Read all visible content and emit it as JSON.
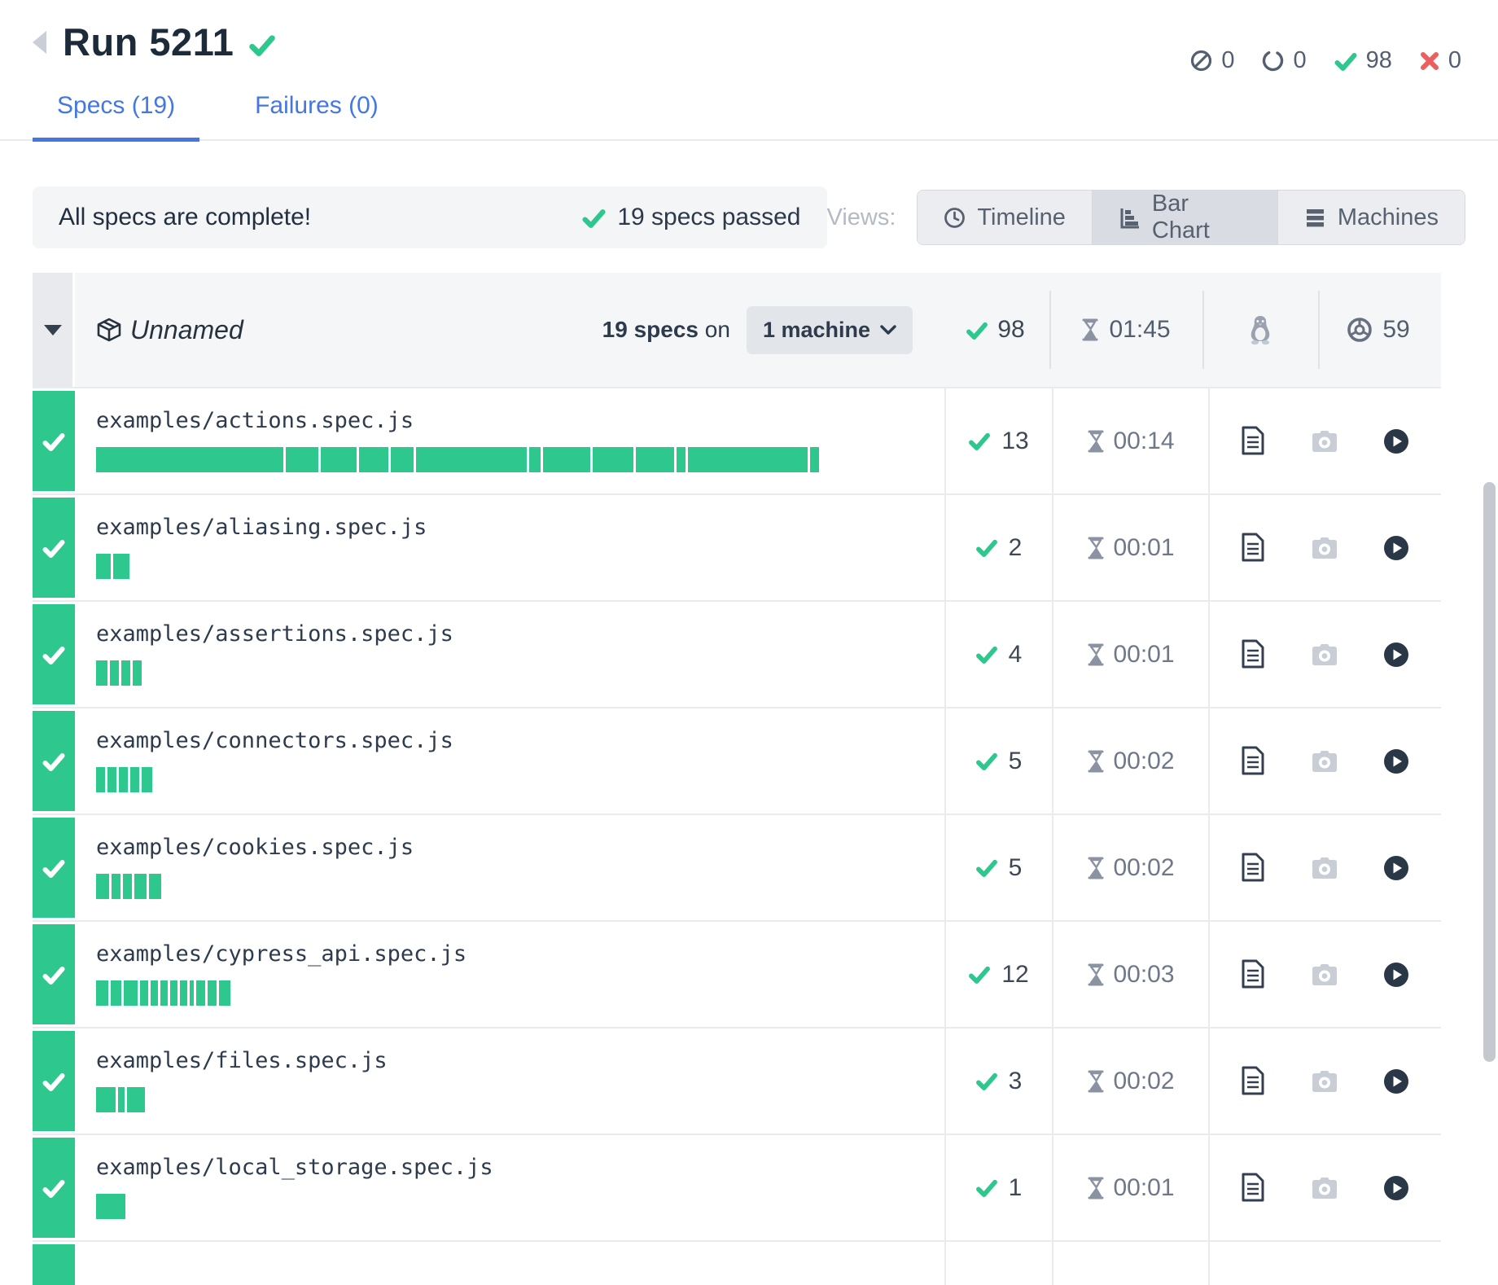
{
  "header": {
    "title": "Run 5211",
    "stats": [
      {
        "name": "skipped",
        "count": "0"
      },
      {
        "name": "pending",
        "count": "0"
      },
      {
        "name": "passed",
        "count": "98"
      },
      {
        "name": "failed",
        "count": "0"
      }
    ]
  },
  "tabs": [
    {
      "label": "Specs (19)",
      "active": true
    },
    {
      "label": "Failures (0)",
      "active": false
    }
  ],
  "banner": {
    "message": "All specs are complete!",
    "passed_summary": "19 specs passed"
  },
  "views": {
    "label": "Views:",
    "buttons": [
      {
        "label": "Timeline",
        "active": false
      },
      {
        "label": "Bar Chart",
        "active": true
      },
      {
        "label": "Machines",
        "active": false
      }
    ]
  },
  "group": {
    "name": "Unnamed",
    "specs_count": "19 specs",
    "on_text": "on",
    "machine_dropdown": "1 machine",
    "passed": "98",
    "duration": "01:45",
    "os_icon": "linux",
    "browser_icon": "chrome",
    "browser_version": "59"
  },
  "specs": [
    {
      "file": "examples/actions.spec.js",
      "passed": "13",
      "duration": "00:14",
      "segments": [
        230,
        40,
        44,
        36,
        28,
        136,
        14,
        58,
        50,
        47,
        11,
        147,
        11
      ]
    },
    {
      "file": "examples/aliasing.spec.js",
      "passed": "2",
      "duration": "00:01",
      "segments": [
        18,
        20
      ]
    },
    {
      "file": "examples/assertions.spec.js",
      "passed": "4",
      "duration": "00:01",
      "segments": [
        14,
        11,
        11,
        11
      ]
    },
    {
      "file": "examples/connectors.spec.js",
      "passed": "5",
      "duration": "00:02",
      "segments": [
        11,
        11,
        11,
        11,
        13
      ]
    },
    {
      "file": "examples/cookies.spec.js",
      "passed": "5",
      "duration": "00:02",
      "segments": [
        16,
        11,
        11,
        15,
        15
      ]
    },
    {
      "file": "examples/cypress_api.spec.js",
      "passed": "12",
      "duration": "00:03",
      "segments": [
        15,
        13,
        17,
        10,
        9,
        9,
        9,
        9,
        5,
        11,
        11,
        14
      ]
    },
    {
      "file": "examples/files.spec.js",
      "passed": "3",
      "duration": "00:02",
      "segments": [
        24,
        8,
        22
      ]
    },
    {
      "file": "examples/local_storage.spec.js",
      "passed": "1",
      "duration": "00:01",
      "segments": [
        36
      ]
    },
    {
      "partial": true
    }
  ],
  "colors": {
    "pass_green": "#2ec78e",
    "fail_red": "#ea5f5f",
    "link_blue": "#4477e3",
    "dark_text": "#1d2a3a",
    "muted_text": "#6e7888"
  }
}
